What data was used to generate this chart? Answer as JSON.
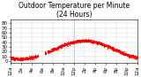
{
  "title": "Outdoor Temperature per Minute\n(24 Hours)",
  "title_fontsize": 5.5,
  "dot_color": "#ff0000",
  "dot_size": 0.8,
  "background_color": "#ffffff",
  "ylim": [
    -4,
    88
  ],
  "xlim": [
    0,
    1440
  ],
  "yticks": [
    0,
    10,
    20,
    30,
    40,
    50,
    60,
    70,
    80
  ],
  "ytick_labels": [
    "0",
    "10",
    "20",
    "30",
    "40",
    "50",
    "60",
    "70",
    "80"
  ],
  "xtick_positions": [
    0,
    120,
    240,
    360,
    480,
    600,
    720,
    840,
    960,
    1080,
    1200,
    1320,
    1440
  ],
  "xtick_labels": [
    "12a",
    "2a",
    "4a",
    "6a",
    "8a",
    "10a",
    "12p",
    "2p",
    "4p",
    "6p",
    "8p",
    "10p",
    "12a"
  ],
  "vline_x": 720,
  "tick_fontsize": 4.0
}
